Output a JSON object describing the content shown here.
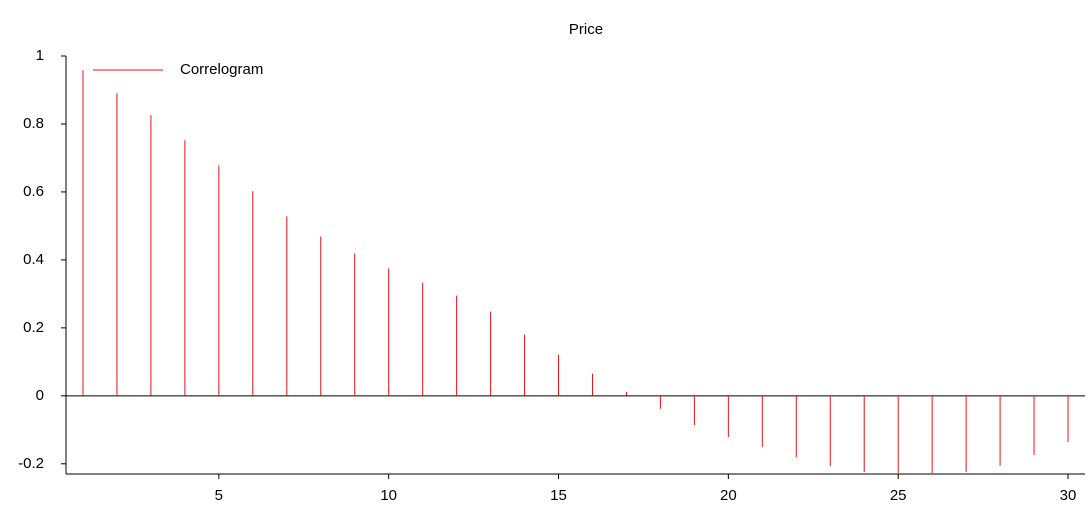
{
  "chart_data": {
    "type": "stem",
    "title": "Price",
    "x": [
      1,
      2,
      3,
      4,
      5,
      6,
      7,
      8,
      9,
      10,
      11,
      12,
      13,
      14,
      15,
      16,
      17,
      18,
      19,
      20,
      21,
      22,
      23,
      24,
      25,
      26,
      27,
      28,
      29,
      30
    ],
    "series": [
      {
        "name": "Correlogram",
        "color": "#e8101a",
        "values": [
          0.958,
          0.89,
          0.826,
          0.752,
          0.678,
          0.602,
          0.528,
          0.469,
          0.419,
          0.375,
          0.333,
          0.295,
          0.248,
          0.18,
          0.121,
          0.065,
          0.012,
          -0.038,
          -0.086,
          -0.121,
          -0.15,
          -0.18,
          -0.206,
          -0.224,
          -0.227,
          -0.227,
          -0.224,
          -0.206,
          -0.174,
          -0.136
        ]
      }
    ],
    "xlim": [
      0.5,
      30.5
    ],
    "xticks": [
      5,
      10,
      15,
      20,
      25,
      30
    ],
    "ylim": [
      -0.23,
      1
    ],
    "yticks": [
      -0.2,
      0,
      0.2,
      0.4,
      0.6,
      0.8,
      1
    ],
    "legend": "upper-left"
  }
}
